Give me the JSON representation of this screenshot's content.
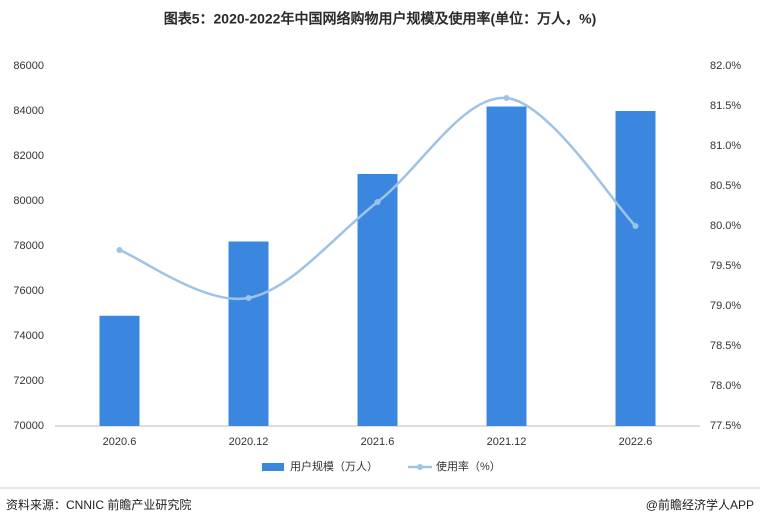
{
  "chart_data": {
    "type": "bar-line",
    "title": "图表5：2020-2022年中国网络购物用户规模及使用率(单位：万人，%)",
    "categories": [
      "2020.6",
      "2020.12",
      "2021.6",
      "2021.12",
      "2022.6"
    ],
    "series": [
      {
        "name": "用户规模（万人）",
        "type": "bar",
        "color": "#3b87e0",
        "values": [
          74900,
          78200,
          81200,
          84200,
          84000
        ]
      },
      {
        "name": "使用率（%）",
        "type": "line",
        "axis": "y2",
        "color": "#9dc3e6",
        "values": [
          79.7,
          79.1,
          80.3,
          81.6,
          80.0
        ]
      }
    ],
    "ylim": [
      70000,
      86000
    ],
    "yticks": [
      70000,
      72000,
      74000,
      76000,
      78000,
      80000,
      82000,
      84000,
      86000
    ],
    "y2lim": [
      77.5,
      82.0
    ],
    "y2ticks": [
      {
        "value": 77.5,
        "label": "77.5%"
      },
      {
        "value": 78.0,
        "label": "78.0%"
      },
      {
        "value": 78.5,
        "label": "78.5%"
      },
      {
        "value": 79.0,
        "label": "79.0%"
      },
      {
        "value": 79.5,
        "label": "79.5%"
      },
      {
        "value": 80.0,
        "label": "80.0%"
      },
      {
        "value": 80.5,
        "label": "80.5%"
      },
      {
        "value": 81.0,
        "label": "81.0%"
      },
      {
        "value": 81.5,
        "label": "81.5%"
      },
      {
        "value": 82.0,
        "label": "82.0%"
      }
    ],
    "source": "资料来源：CNNIC 前瞻产业研究院",
    "credit": "@前瞻经济学人APP"
  }
}
